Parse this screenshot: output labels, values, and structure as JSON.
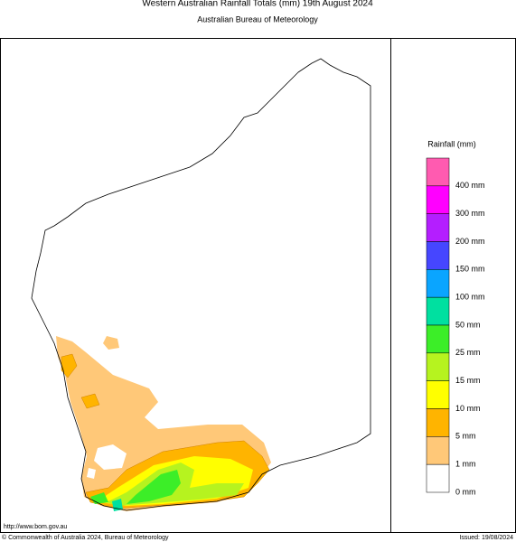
{
  "header": {
    "title": "Western Australian Rainfall Totals (mm) 19th August 2024",
    "subtitle": "Australian Bureau of Meteorology"
  },
  "legend": {
    "title": "Rainfall (mm)",
    "items": [
      {
        "label": "400 mm",
        "color": "#ff5bb0"
      },
      {
        "label": "300 mm",
        "color": "#ff00ff"
      },
      {
        "label": "200 mm",
        "color": "#b41eff"
      },
      {
        "label": "150 mm",
        "color": "#4646ff"
      },
      {
        "label": "100 mm",
        "color": "#0aa5ff"
      },
      {
        "label": "50 mm",
        "color": "#00e0a0"
      },
      {
        "label": "25 mm",
        "color": "#3cee28"
      },
      {
        "label": "15 mm",
        "color": "#b6f31f"
      },
      {
        "label": "10 mm",
        "color": "#ffff00"
      },
      {
        "label": "5 mm",
        "color": "#ffb400"
      },
      {
        "label": "1 mm",
        "color": "#ffc878"
      },
      {
        "label": "0 mm",
        "color": "#ffffff"
      }
    ]
  },
  "footer": {
    "url": "http://www.bom.gov.au",
    "copyright": "© Commonwealth of Australia 2024, Bureau of Meteorology",
    "issued": "Issued: 19/08/2024"
  }
}
